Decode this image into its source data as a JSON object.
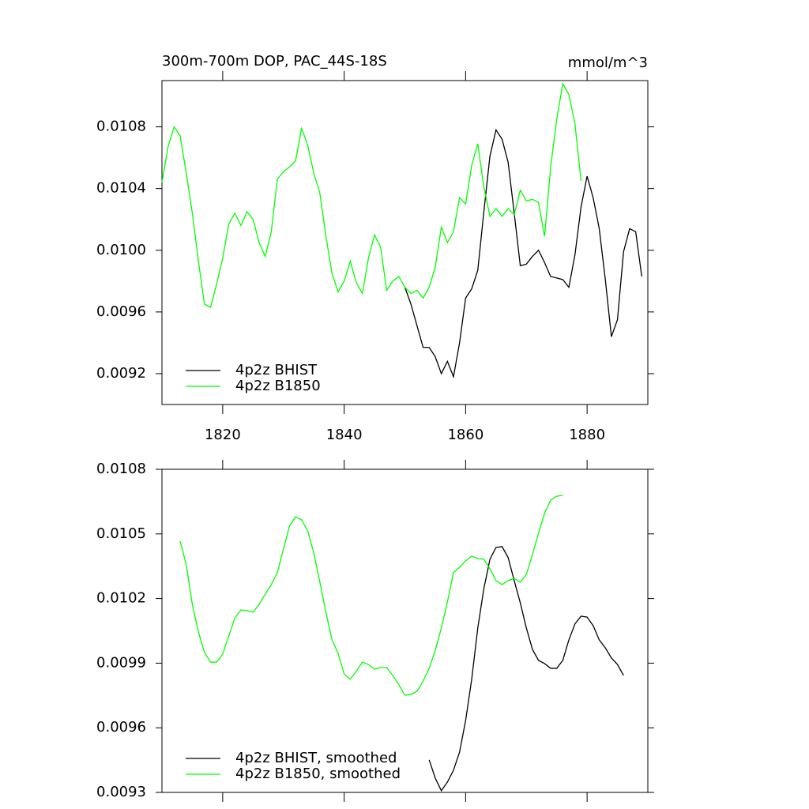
{
  "chart_data": [
    {
      "type": "line",
      "title": "300m-700m DOP, PAC_44S-18S",
      "units": "mmol/m^3",
      "xlim": [
        1810,
        1890
      ],
      "xticks": [
        1820,
        1840,
        1860,
        1880
      ],
      "show_xtick_labels": true,
      "ylim": [
        0.009,
        0.0111
      ],
      "yticks": [
        0.0092,
        0.0096,
        {
          "value": 0.01,
          "label": "0.0100"
        },
        0.0104,
        0.0108
      ],
      "legend": "lower left",
      "series": [
        {
          "name": "4p2z BHIST",
          "color": "#000000",
          "x": [
            1850,
            1851,
            1852,
            1853,
            1854,
            1855,
            1856,
            1857,
            1858,
            1859,
            1860,
            1861,
            1862,
            1863,
            1864,
            1865,
            1866,
            1867,
            1868,
            1869,
            1870,
            1871,
            1872,
            1873,
            1874,
            1875,
            1876,
            1877,
            1878,
            1879,
            1880,
            1881,
            1882,
            1883,
            1884,
            1885,
            1886,
            1887,
            1888,
            1889
          ],
          "values": [
            0.00976,
            0.00965,
            0.00951,
            0.00937,
            0.00937,
            0.00931,
            0.0092,
            0.00928,
            0.00918,
            0.0094,
            0.00969,
            0.00975,
            0.00987,
            0.01025,
            0.01061,
            0.01078,
            0.01072,
            0.01057,
            0.01024,
            0.0099,
            0.00991,
            0.00996,
            0.01,
            0.00992,
            0.00983,
            0.00982,
            0.00981,
            0.00976,
            0.00997,
            0.01028,
            0.01048,
            0.01034,
            0.01014,
            0.00981,
            0.00944,
            0.00955,
            0.00999,
            0.01014,
            0.01012,
            0.00983
          ]
        },
        {
          "name": "4p2z B1850",
          "color": "#00ff00",
          "x": [
            1810,
            1811,
            1812,
            1813,
            1814,
            1815,
            1816,
            1817,
            1818,
            1819,
            1820,
            1821,
            1822,
            1823,
            1824,
            1825,
            1826,
            1827,
            1828,
            1829,
            1830,
            1831,
            1832,
            1833,
            1834,
            1835,
            1836,
            1837,
            1838,
            1839,
            1840,
            1841,
            1842,
            1843,
            1844,
            1845,
            1846,
            1847,
            1848,
            1849,
            1850,
            1851,
            1852,
            1853,
            1854,
            1855,
            1856,
            1857,
            1858,
            1859,
            1860,
            1861,
            1862,
            1863,
            1864,
            1865,
            1866,
            1867,
            1868,
            1869,
            1870,
            1871,
            1872,
            1873,
            1874,
            1875,
            1876,
            1877,
            1878,
            1879
          ],
          "values": [
            0.01044,
            0.01067,
            0.0108,
            0.01074,
            0.0105,
            0.01024,
            0.00993,
            0.00965,
            0.00963,
            0.00978,
            0.00995,
            0.01017,
            0.01024,
            0.01016,
            0.01025,
            0.0102,
            0.01005,
            0.00996,
            0.01012,
            0.01046,
            0.01051,
            0.01054,
            0.01058,
            0.01079,
            0.01068,
            0.0105,
            0.01037,
            0.01009,
            0.00985,
            0.00973,
            0.0098,
            0.00993,
            0.00979,
            0.00972,
            0.00995,
            0.0101,
            0.01002,
            0.00974,
            0.0098,
            0.00983,
            0.00976,
            0.00972,
            0.00974,
            0.00969,
            0.00976,
            0.00989,
            0.01015,
            0.01005,
            0.01012,
            0.01034,
            0.0103,
            0.01055,
            0.01069,
            0.01041,
            0.01022,
            0.01027,
            0.01022,
            0.01027,
            0.01023,
            0.01039,
            0.01032,
            0.01033,
            0.01031,
            0.01009,
            0.01054,
            0.01085,
            0.01108,
            0.01101,
            0.01082,
            0.01045
          ]
        }
      ]
    },
    {
      "type": "line",
      "xlim": [
        1810,
        1890
      ],
      "xticks": [
        1820,
        1840,
        1860,
        1880
      ],
      "show_xtick_labels": false,
      "ylim": [
        0.0093,
        0.0108
      ],
      "yticks": [
        0.0093,
        0.0096,
        0.0099,
        0.0102,
        0.0105,
        0.0108
      ],
      "legend": "lower left",
      "series": [
        {
          "name": "4p2z BHIST, smoothed",
          "color": "#000000",
          "x": [
            1854,
            1855,
            1856,
            1857,
            1858,
            1859,
            1860,
            1861,
            1862,
            1863,
            1864,
            1865,
            1866,
            1867,
            1868,
            1869,
            1870,
            1871,
            1872,
            1873,
            1874,
            1875,
            1876,
            1877,
            1878,
            1879,
            1880,
            1881,
            1882,
            1883,
            1884,
            1885,
            1886
          ],
          "values": [
            0.009451,
            0.009366,
            0.009308,
            0.009348,
            0.009403,
            0.009487,
            0.009634,
            0.009825,
            0.010063,
            0.010246,
            0.010382,
            0.010437,
            0.010441,
            0.01039,
            0.010283,
            0.01018,
            0.010063,
            0.009964,
            0.009913,
            0.009898,
            0.009876,
            0.009876,
            0.009913,
            0.010008,
            0.010082,
            0.010118,
            0.010114,
            0.010074,
            0.010008,
            0.009971,
            0.009924,
            0.009894,
            0.009843
          ]
        },
        {
          "name": "4p2z B1850, smoothed",
          "color": "#00ff00",
          "x": [
            1813,
            1814,
            1815,
            1816,
            1817,
            1818,
            1819,
            1820,
            1821,
            1822,
            1823,
            1824,
            1825,
            1826,
            1827,
            1828,
            1829,
            1830,
            1831,
            1832,
            1833,
            1834,
            1835,
            1836,
            1837,
            1838,
            1839,
            1840,
            1841,
            1842,
            1843,
            1844,
            1845,
            1846,
            1847,
            1848,
            1849,
            1850,
            1851,
            1852,
            1853,
            1854,
            1855,
            1856,
            1857,
            1858,
            1859,
            1860,
            1861,
            1862,
            1863,
            1864,
            1865,
            1866,
            1867,
            1868,
            1869,
            1870,
            1871,
            1872,
            1873,
            1874,
            1875,
            1876
          ],
          "values": [
            0.010466,
            0.010356,
            0.010173,
            0.010045,
            0.00995,
            0.009905,
            0.009905,
            0.009942,
            0.010026,
            0.01011,
            0.010147,
            0.010144,
            0.010136,
            0.010173,
            0.01022,
            0.010265,
            0.01032,
            0.01043,
            0.010536,
            0.01058,
            0.010565,
            0.010514,
            0.010411,
            0.010276,
            0.010136,
            0.010008,
            0.009946,
            0.00985,
            0.009825,
            0.009862,
            0.009905,
            0.009894,
            0.009872,
            0.00988,
            0.00988,
            0.009843,
            0.0098,
            0.009751,
            0.009755,
            0.00977,
            0.009817,
            0.009876,
            0.00996,
            0.010063,
            0.010184,
            0.01032,
            0.010345,
            0.010375,
            0.010397,
            0.010386,
            0.010382,
            0.010338,
            0.010283,
            0.010265,
            0.010283,
            0.010294,
            0.010276,
            0.010312,
            0.010404,
            0.010503,
            0.010595,
            0.010657,
            0.010675,
            0.010679
          ]
        }
      ]
    }
  ]
}
